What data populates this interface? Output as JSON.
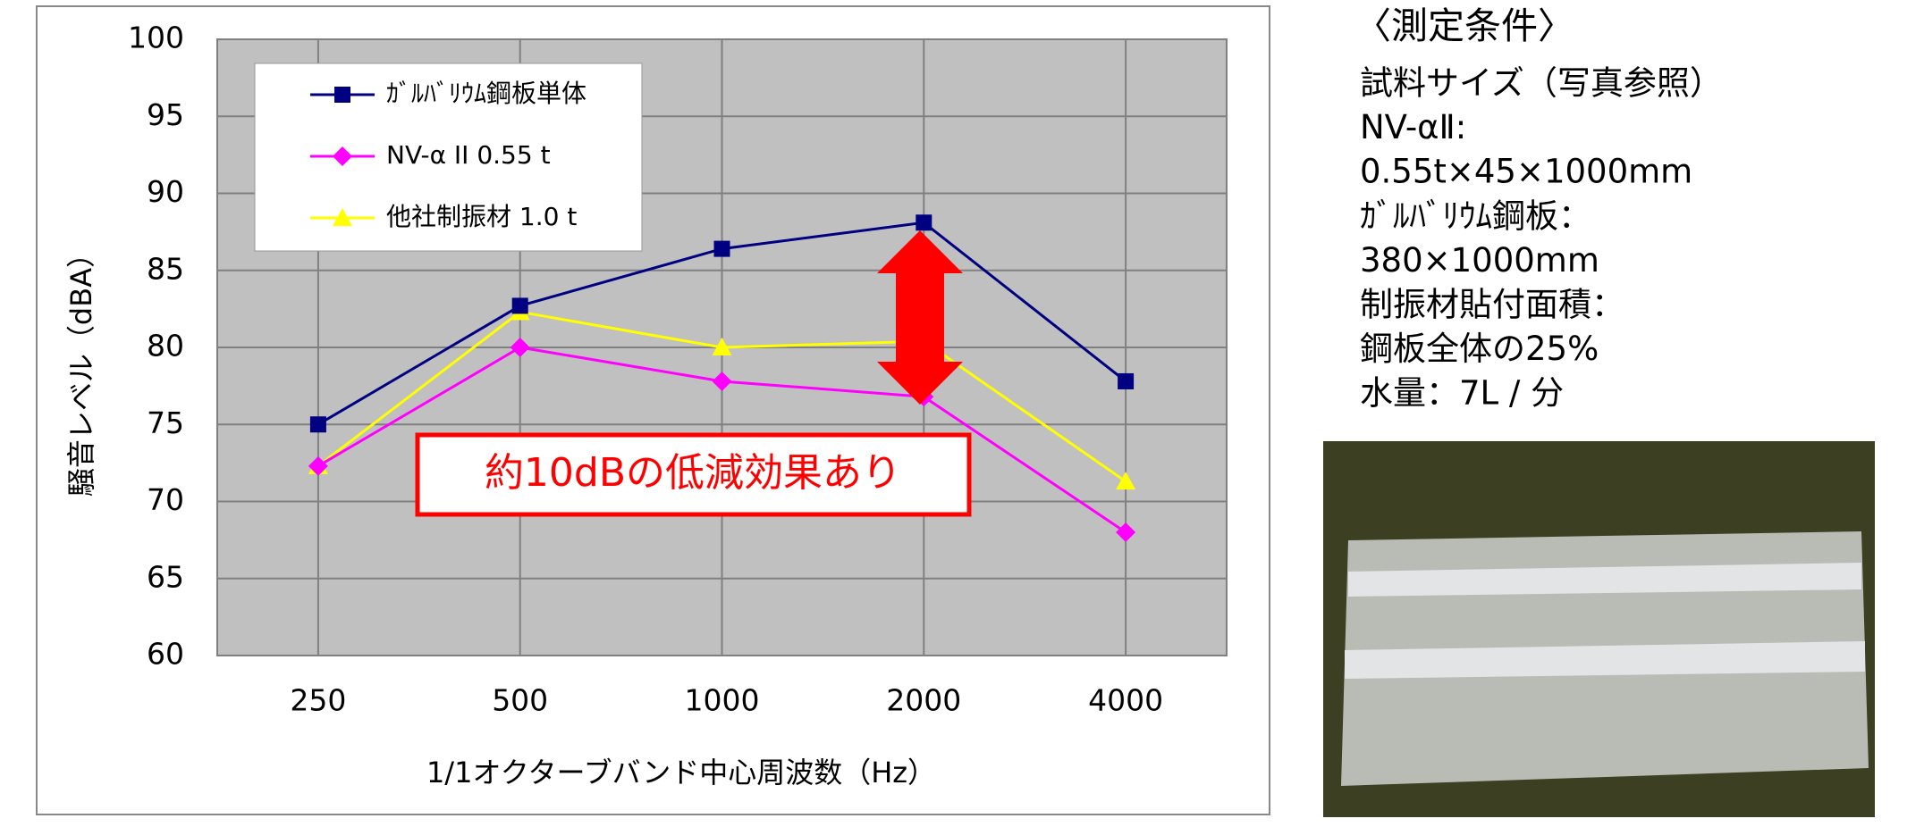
{
  "chart_data": {
    "type": "line",
    "y_label": "騒音レベル（dBA）",
    "x_label": "1/1オクターブバンド中心周波数（Hz）",
    "categories": [
      "250",
      "500",
      "1000",
      "2000",
      "4000"
    ],
    "series": [
      {
        "name": "ｶﾞﾙﾊﾞﾘｳﾑ鋼板単体",
        "color": "#000080",
        "marker": "square",
        "values": [
          75.0,
          82.7,
          86.4,
          88.1,
          77.8
        ]
      },
      {
        "name": "NV-α II 0.55 t",
        "color": "#ff00ff",
        "marker": "diamond",
        "values": [
          72.3,
          80.0,
          77.8,
          76.8,
          68.0
        ]
      },
      {
        "name": "他社制振材 1.0 t",
        "color": "#ffff00",
        "marker": "triangle",
        "values": [
          72.3,
          82.3,
          80.0,
          80.4,
          71.3
        ]
      }
    ],
    "ylim": [
      60,
      100
    ],
    "yticks": [
      60,
      65,
      70,
      75,
      80,
      85,
      90,
      95,
      100
    ],
    "grid": true,
    "legend": "upper left",
    "annotation": "約10dBの低減効果あり"
  },
  "side_panel": {
    "title": "〈測定条件〉",
    "lines": [
      "試料サイズ（写真参照）",
      "NV-αⅡ:",
      "0.55t×45×1000mm",
      "ｶﾞﾙﾊﾞﾘｳﾑ鋼板：",
      "380×1000mm",
      "制振材貼付面積：",
      "鋼板全体の25%",
      "水量：7L / 分"
    ]
  }
}
